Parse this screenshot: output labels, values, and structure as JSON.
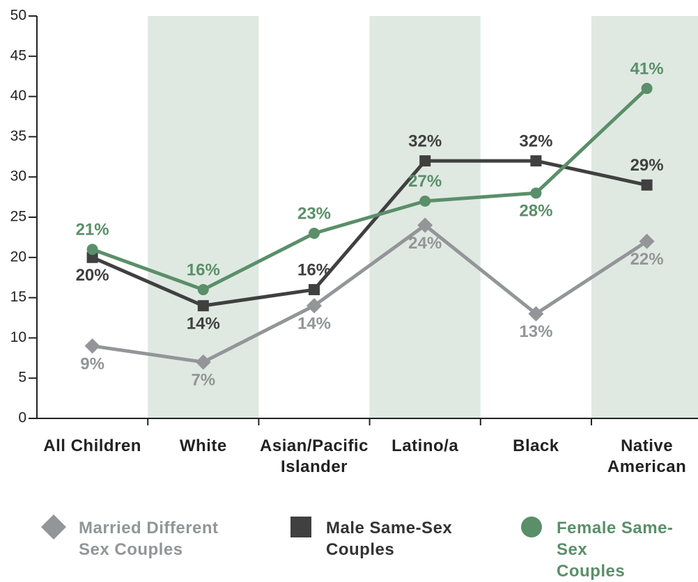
{
  "chart_data": {
    "type": "line",
    "categories": [
      "All Children",
      "White",
      "Asian/Pacific\nIslander",
      "Latino/a",
      "Black",
      "Native\nAmerican"
    ],
    "series": [
      {
        "name": "Married Different\nSex Couples",
        "color": "#939598",
        "marker": "diamond",
        "values": [
          9,
          7,
          14,
          24,
          13,
          22
        ],
        "value_labels": [
          "9%",
          "7%",
          "14%",
          "24%",
          "13%",
          "22%"
        ]
      },
      {
        "name": "Male Same-Sex\nCouples",
        "color": "#404040",
        "marker": "square",
        "values": [
          20,
          14,
          16,
          32,
          32,
          29
        ],
        "value_labels": [
          "20%",
          "14%",
          "16%",
          "32%",
          "32%",
          "29%"
        ]
      },
      {
        "name": "Female Same-Sex\nCouples",
        "color": "#5a8f69",
        "marker": "circle",
        "values": [
          21,
          16,
          23,
          27,
          28,
          41
        ],
        "value_labels": [
          "21%",
          "16%",
          "23%",
          "27%",
          "28%",
          "41%"
        ]
      }
    ],
    "ylim": [
      0,
      50
    ],
    "yticks": [
      0,
      5,
      10,
      15,
      20,
      25,
      30,
      35,
      40,
      45,
      50
    ],
    "grid": false,
    "legend": "bottom"
  }
}
